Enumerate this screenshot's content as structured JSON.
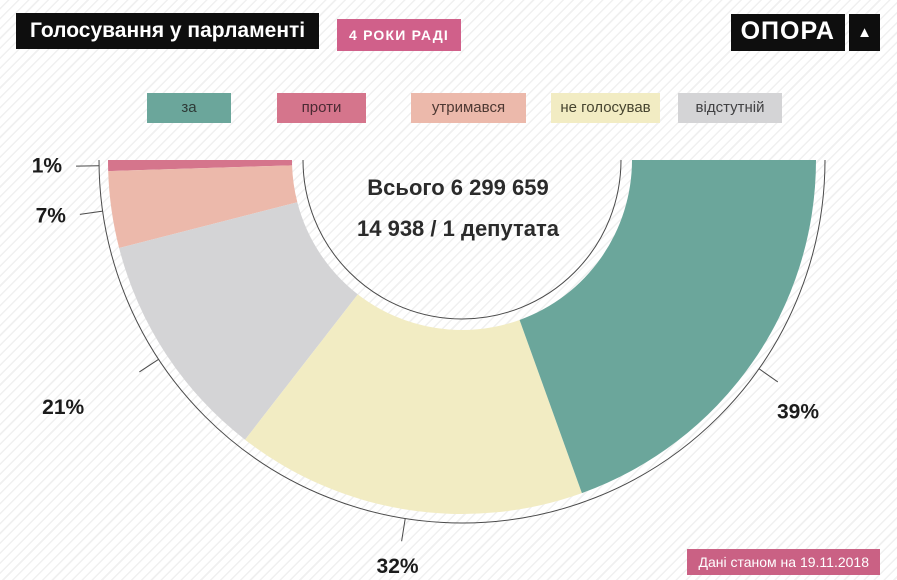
{
  "header": {
    "title": "Голосування у парламенті",
    "badge": "4 РОКИ РАДІ",
    "logo_text": "ОПОРА",
    "logo_mark": "▲"
  },
  "legend": {
    "items": [
      {
        "label": "за",
        "color": "#6ba69b",
        "text_color": "#2e3a37"
      },
      {
        "label": "проти",
        "color": "#d5758c",
        "text_color": "#4b2a33"
      },
      {
        "label": "утримався",
        "color": "#ecb9ab",
        "text_color": "#4d3832"
      },
      {
        "label": "не голосував",
        "color": "#f2ecc3",
        "text_color": "#46442f"
      },
      {
        "label": "відстутній",
        "color": "#d4d4d6",
        "text_color": "#414143"
      }
    ]
  },
  "center": {
    "line1": "Всього 6 299 659",
    "line2": "14 938 / 1 депутата"
  },
  "footer": {
    "note": "Дані станом на 19.11.2018"
  },
  "colors": {
    "title_bg": "#0e0e0e",
    "badge_bg": "#d0608a",
    "footer_badge_bg": "#ca6184",
    "outline": "#4a4a4a",
    "percent_label": "#1b1b1b",
    "center_text": "#2b2b2b"
  },
  "chart_data": {
    "type": "half-donut",
    "title": "Голосування у парламенті",
    "subtitle": "4 РОКИ РАДІ",
    "categories": [
      "проти",
      "утримався",
      "відстутній",
      "не голосував",
      "за"
    ],
    "values": [
      1,
      7,
      21,
      32,
      39
    ],
    "unit": "%",
    "colors": [
      "#d5758c",
      "#ecb9ab",
      "#d4d4d6",
      "#f2ecc3",
      "#6ba69b"
    ],
    "start_angle_deg": 180,
    "end_angle_deg": 360,
    "inner_radius_ratio": 0.48,
    "annotations": [
      "Всього 6 299 659",
      "14 938 / 1 депутата"
    ],
    "legend_order": [
      "за",
      "проти",
      "утримався",
      "не голосував",
      "відстутній"
    ],
    "legend_position": "top",
    "footnote": "Дані станом на 19.11.2018"
  }
}
